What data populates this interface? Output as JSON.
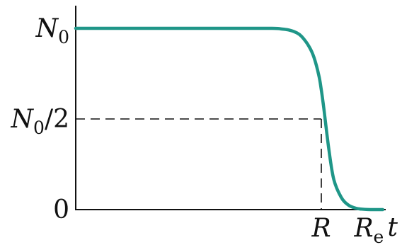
{
  "chart_data": {
    "type": "line",
    "curve_color": "#1f9688",
    "axis_color": "#111111",
    "x_axis": {
      "label": "t",
      "ticks": [
        {
          "key": "R",
          "text": "R"
        },
        {
          "key": "Re",
          "main": "R",
          "sub": "e"
        }
      ]
    },
    "y_axis": {
      "ticks": [
        {
          "key": "N0",
          "main": "N",
          "sub": "0"
        },
        {
          "key": "N0_2",
          "main": "N",
          "sub": "0",
          "tail": "/2"
        },
        {
          "key": "zero",
          "text": "0"
        }
      ]
    },
    "series": [
      {
        "x": [
          0.0,
          0.3,
          0.6,
          0.8,
          0.84,
          0.87,
          0.9,
          0.92,
          0.95,
          0.97,
          0.99,
          1.0,
          1.01,
          1.03,
          1.05,
          1.08,
          1.11,
          1.14,
          1.16,
          1.2,
          1.25
        ],
        "y": [
          1.0,
          1.0,
          1.0,
          1.0,
          0.996,
          0.99,
          0.975,
          0.955,
          0.9,
          0.84,
          0.74,
          0.66,
          0.56,
          0.34,
          0.17,
          0.07,
          0.025,
          0.008,
          0.003,
          0.0,
          0.0
        ]
      }
    ],
    "guides": {
      "x": 1.0,
      "y": 0.5
    }
  }
}
